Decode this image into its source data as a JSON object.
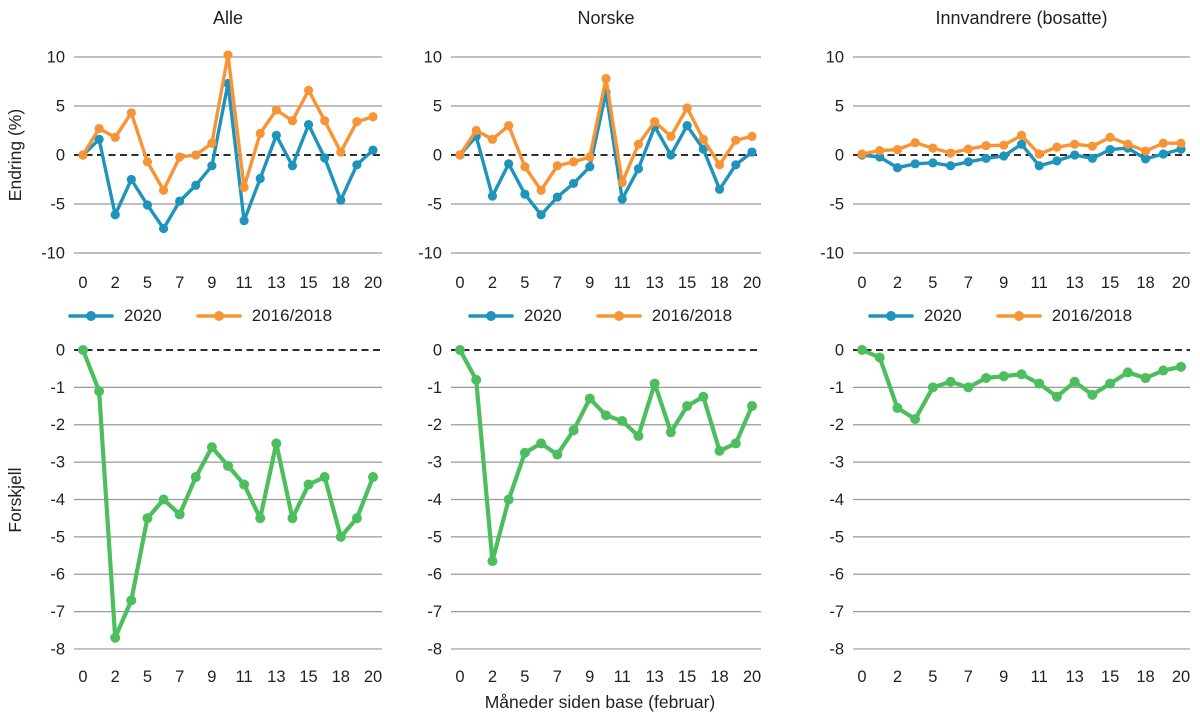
{
  "figure": {
    "x_axis_title": "Måneder siden base (februar)",
    "top_row_ylabel": "Endring (%)",
    "bottom_row_ylabel": "Forskjell",
    "colors": {
      "series_2020": "#1E94BC",
      "series_2016_2018": "#F79436",
      "difference": "#4CBE5E",
      "gridline": "#999999",
      "zero_line": "#111111",
      "text": "#231f20"
    }
  },
  "chart_data": [
    {
      "type": "line",
      "panel": "alle-endring",
      "row": "top",
      "col": 0,
      "title": "Alle",
      "ylabel": "Endring (%)",
      "ylim": [
        -10,
        10
      ],
      "yticks": [
        10,
        5,
        0,
        -5,
        -10
      ],
      "zero_line": "dashed",
      "grid": true,
      "legend_position": "bottom",
      "x_tick_indices": [
        0,
        2,
        4,
        6,
        8,
        10,
        12,
        14,
        16,
        18
      ],
      "x_tick_labels": [
        "0",
        "2",
        "5",
        "7",
        "9",
        "11",
        "13",
        "15",
        "18",
        "20"
      ],
      "series": [
        {
          "name": "2020",
          "color": "#1E94BC",
          "values": [
            0,
            1.6,
            -6.1,
            -2.5,
            -5.1,
            -7.5,
            -4.7,
            -3.1,
            -1.1,
            7.3,
            -6.7,
            -2.4,
            2.0,
            -1.1,
            3.1,
            -0.3,
            -4.6,
            -1.0,
            0.5
          ]
        },
        {
          "name": "2016/2018",
          "color": "#F79436",
          "values": [
            0,
            2.7,
            1.8,
            4.3,
            -0.7,
            -3.6,
            -0.2,
            0.0,
            1.2,
            10.2,
            -3.3,
            2.2,
            4.6,
            3.5,
            6.6,
            3.5,
            0.3,
            3.4,
            3.9
          ]
        }
      ]
    },
    {
      "type": "line",
      "panel": "norske-endring",
      "row": "top",
      "col": 1,
      "title": "Norske",
      "ylabel": null,
      "ylim": [
        -10,
        10
      ],
      "yticks": [
        10,
        5,
        0,
        -5,
        -10
      ],
      "zero_line": "dashed",
      "grid": true,
      "legend_position": "bottom",
      "x_tick_indices": [
        0,
        2,
        4,
        6,
        8,
        10,
        12,
        14,
        16,
        18
      ],
      "x_tick_labels": [
        "0",
        "2",
        "5",
        "7",
        "9",
        "11",
        "13",
        "15",
        "18",
        "20"
      ],
      "series": [
        {
          "name": "2020",
          "color": "#1E94BC",
          "values": [
            0,
            1.9,
            -4.2,
            -0.9,
            -4.0,
            -6.1,
            -4.3,
            -2.9,
            -1.2,
            6.4,
            -4.5,
            -1.4,
            2.9,
            0.0,
            3.0,
            0.6,
            -3.5,
            -1.0,
            0.3
          ]
        },
        {
          "name": "2016/2018",
          "color": "#F79436",
          "values": [
            0,
            2.5,
            1.6,
            3.0,
            -1.2,
            -3.6,
            -1.1,
            -0.7,
            -0.2,
            7.8,
            -2.8,
            1.1,
            3.4,
            1.9,
            4.8,
            1.6,
            -1.0,
            1.5,
            1.9
          ]
        }
      ]
    },
    {
      "type": "line",
      "panel": "innvandrere-endring",
      "row": "top",
      "col": 2,
      "title": "Innvandrere (bosatte)",
      "ylabel": null,
      "ylim": [
        -10,
        10
      ],
      "yticks": [
        10,
        5,
        0,
        -5,
        -10
      ],
      "zero_line": "dashed",
      "grid": true,
      "legend_position": "bottom",
      "x_tick_indices": [
        0,
        2,
        4,
        6,
        8,
        10,
        12,
        14,
        16,
        18
      ],
      "x_tick_labels": [
        "0",
        "2",
        "5",
        "7",
        "9",
        "11",
        "13",
        "15",
        "18",
        "20"
      ],
      "series": [
        {
          "name": "2020",
          "color": "#1E94BC",
          "values": [
            0,
            -0.2,
            -1.3,
            -0.9,
            -0.8,
            -1.1,
            -0.7,
            -0.35,
            -0.1,
            1.1,
            -1.1,
            -0.6,
            0.0,
            -0.35,
            0.55,
            0.7,
            -0.4,
            0.1,
            0.6
          ]
        },
        {
          "name": "2016/2018",
          "color": "#F79436",
          "values": [
            0.1,
            0.45,
            0.55,
            1.25,
            0.7,
            0.2,
            0.6,
            0.95,
            1.0,
            2.0,
            0.1,
            0.8,
            1.1,
            0.9,
            1.8,
            1.1,
            0.4,
            1.2,
            1.2
          ]
        }
      ]
    },
    {
      "type": "line",
      "panel": "alle-forskjell",
      "row": "bottom",
      "col": 0,
      "title": null,
      "ylabel": "Forskjell",
      "ylim": [
        -8,
        0
      ],
      "yticks": [
        0,
        -1,
        -2,
        -3,
        -4,
        -5,
        -6,
        -7,
        -8
      ],
      "zero_line": "dashed",
      "grid": true,
      "legend_position": "none",
      "x_tick_indices": [
        0,
        2,
        4,
        6,
        8,
        10,
        12,
        14,
        16,
        18
      ],
      "x_tick_labels": [
        "0",
        "2",
        "5",
        "7",
        "9",
        "11",
        "13",
        "15",
        "18",
        "20"
      ],
      "series": [
        {
          "name": "Forskjell",
          "color": "#4CBE5E",
          "values": [
            0,
            -1.1,
            -7.7,
            -6.7,
            -4.5,
            -4.0,
            -4.4,
            -3.4,
            -2.6,
            -3.1,
            -3.6,
            -4.5,
            -2.5,
            -4.5,
            -3.6,
            -3.4,
            -5.0,
            -4.5,
            -3.4
          ]
        }
      ]
    },
    {
      "type": "line",
      "panel": "norske-forskjell",
      "row": "bottom",
      "col": 1,
      "title": null,
      "ylabel": null,
      "ylim": [
        -8,
        0
      ],
      "yticks": [
        0,
        -1,
        -2,
        -3,
        -4,
        -5,
        -6,
        -7,
        -8
      ],
      "zero_line": "dashed",
      "grid": true,
      "legend_position": "none",
      "x_tick_indices": [
        0,
        2,
        4,
        6,
        8,
        10,
        12,
        14,
        16,
        18
      ],
      "x_tick_labels": [
        "0",
        "2",
        "5",
        "7",
        "9",
        "11",
        "13",
        "15",
        "18",
        "20"
      ],
      "series": [
        {
          "name": "Forskjell",
          "color": "#4CBE5E",
          "values": [
            0,
            -0.8,
            -5.65,
            -4.0,
            -2.75,
            -2.5,
            -2.8,
            -2.15,
            -1.3,
            -1.75,
            -1.9,
            -2.3,
            -0.9,
            -2.2,
            -1.5,
            -1.25,
            -2.7,
            -2.5,
            -1.5
          ]
        }
      ]
    },
    {
      "type": "line",
      "panel": "innvandrere-forskjell",
      "row": "bottom",
      "col": 2,
      "title": null,
      "ylabel": null,
      "ylim": [
        -8,
        0
      ],
      "yticks": [
        0,
        -1,
        -2,
        -3,
        -4,
        -5,
        -6,
        -7,
        -8
      ],
      "zero_line": "dashed",
      "grid": true,
      "legend_position": "none",
      "x_tick_indices": [
        0,
        2,
        4,
        6,
        8,
        10,
        12,
        14,
        16,
        18
      ],
      "x_tick_labels": [
        "0",
        "2",
        "5",
        "7",
        "9",
        "11",
        "13",
        "15",
        "18",
        "20"
      ],
      "series": [
        {
          "name": "Forskjell",
          "color": "#4CBE5E",
          "values": [
            0,
            -0.2,
            -1.55,
            -1.85,
            -1.0,
            -0.85,
            -1.0,
            -0.75,
            -0.7,
            -0.65,
            -0.9,
            -1.25,
            -0.85,
            -1.2,
            -0.9,
            -0.6,
            -0.75,
            -0.55,
            -0.45
          ]
        }
      ]
    }
  ]
}
